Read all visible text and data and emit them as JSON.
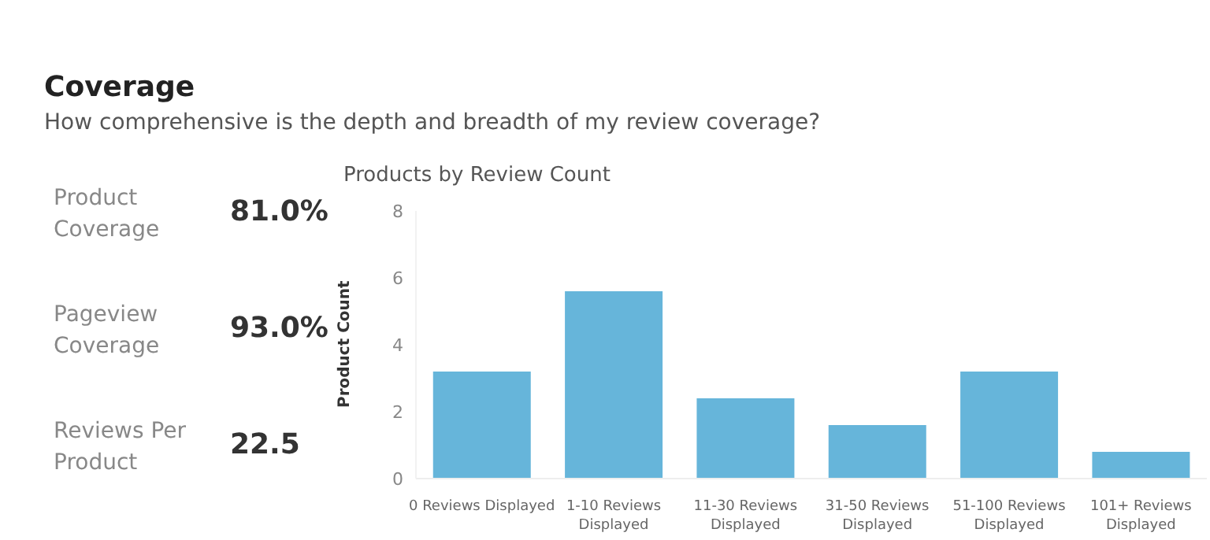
{
  "chart_data": [
    {
      "type": "other",
      "title": "Coverage",
      "subtitle": "How comprehensive is the depth and breadth of my review coverage?",
      "annotations": [
        "Product\nCoverage",
        "81.0%",
        "Pageview\nCoverage",
        "93.0%",
        "Reviews Per\nProduct",
        "22.5"
      ]
    },
    {
      "type": "bar",
      "title": "Products by Review Count",
      "ylabel": "Product Count",
      "categories": [
        "0 Reviews Displayed",
        "1-10 Reviews Displayed",
        "11-30 Reviews Displayed",
        "31-50 Reviews Displayed",
        "51-100 Reviews Displayed",
        "101+ Reviews Displayed"
      ],
      "values": [
        3.2,
        5.6,
        2.4,
        1.6,
        3.2,
        0.8
      ],
      "color": "#66b5da",
      "ylim": [
        0,
        8
      ],
      "yticks": [
        0,
        2,
        4,
        6,
        8
      ],
      "grid": false,
      "legend": false
    }
  ]
}
